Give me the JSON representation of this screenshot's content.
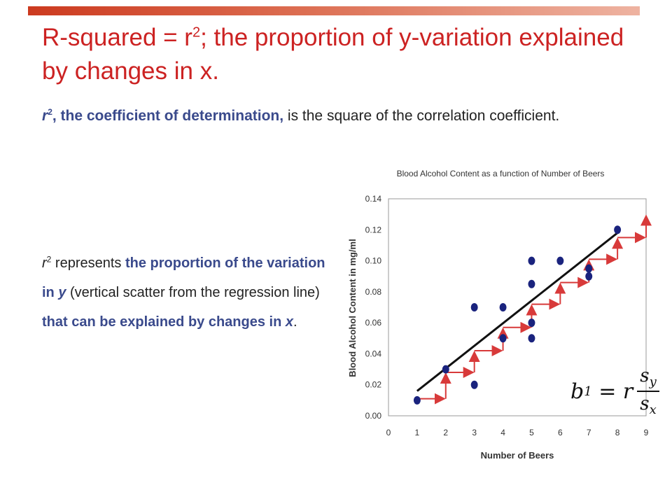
{
  "slide": {
    "title_part1": "R-squared = r",
    "title_sup": "2",
    "title_part2": "; the proportion of y-variation explained by changes in x.",
    "p1_r": "r",
    "p1_sup": "2",
    "p1_bold": ", the coefficient of determination,",
    "p1_rest": " is the square of the correlation coefficient.",
    "p2_r": "r",
    "p2_sup": "2",
    "p2_a": " represents ",
    "p2_b": "the proportion of the variation in ",
    "p2_y": "y",
    "p2_c": " (vertical scatter from the regression line) ",
    "p2_d": "that can be explained by changes in ",
    "p2_x": "x",
    "p2_e": "."
  },
  "formula": {
    "lhs": "b",
    "lhs_sub": "1",
    "equals": "= r",
    "num": "s",
    "num_sub": "y",
    "den": "s",
    "den_sub": "x"
  },
  "colors": {
    "title": "#cc2222",
    "highlight": "#3a4a8c",
    "points": "#1a237e",
    "regression_line": "#111111",
    "arrows": "#d83a3a"
  },
  "chart_data": {
    "type": "scatter",
    "title": "Blood Alcohol Content as a function of Number of Beers",
    "xlabel": "Number of Beers",
    "ylabel": "Blood Alcohol Content in mg/ml",
    "xlim": [
      0,
      9
    ],
    "ylim": [
      0,
      0.14
    ],
    "xticks": [
      "0",
      "1",
      "2",
      "3",
      "4",
      "5",
      "6",
      "7",
      "8",
      "9"
    ],
    "yticks": [
      "0.00",
      "0.02",
      "0.04",
      "0.06",
      "0.08",
      "0.10",
      "0.12",
      "0.14"
    ],
    "points": [
      {
        "x": 1,
        "y": 0.01
      },
      {
        "x": 2,
        "y": 0.03
      },
      {
        "x": 3,
        "y": 0.02
      },
      {
        "x": 3,
        "y": 0.07
      },
      {
        "x": 4,
        "y": 0.07
      },
      {
        "x": 4,
        "y": 0.05
      },
      {
        "x": 5,
        "y": 0.1
      },
      {
        "x": 5,
        "y": 0.085
      },
      {
        "x": 5,
        "y": 0.06
      },
      {
        "x": 5,
        "y": 0.05
      },
      {
        "x": 6,
        "y": 0.1
      },
      {
        "x": 7,
        "y": 0.095
      },
      {
        "x": 7,
        "y": 0.09
      },
      {
        "x": 8,
        "y": 0.12
      }
    ],
    "regression": {
      "x": [
        1,
        8
      ],
      "y": [
        0.016,
        0.118
      ]
    },
    "step_x": [
      1,
      2,
      3,
      4,
      5,
      6,
      7,
      8
    ],
    "step_y": [
      0.011,
      0.028,
      0.042,
      0.057,
      0.072,
      0.086,
      0.101,
      0.115
    ],
    "grid": false
  }
}
